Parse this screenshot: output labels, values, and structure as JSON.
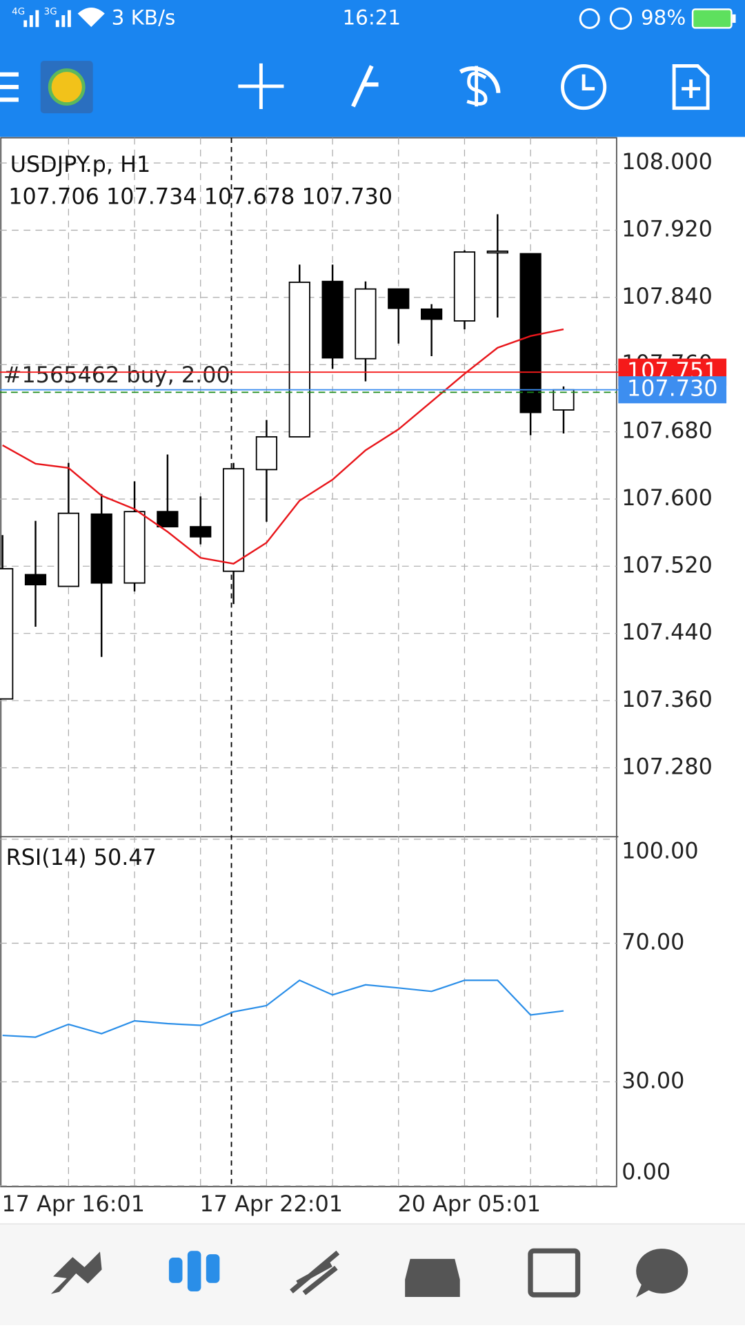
{
  "status_bar": {
    "network1": "4G",
    "network2": "3G",
    "speed": "3 KB/s",
    "time": "16:21",
    "battery": "98%"
  },
  "chart_data": [
    {
      "type": "candlestick",
      "title": "USDJPY.p, H1",
      "subtitle": "107.706 107.734 107.678 107.730",
      "categories": [
        "17 Apr 16:01",
        null,
        null,
        null,
        null,
        null,
        "17 Apr 22:01",
        null,
        null,
        null,
        null,
        null,
        "20 Apr 05:01",
        null,
        null,
        null,
        null,
        null
      ],
      "open": [
        107.362,
        107.51,
        107.496,
        107.582,
        107.5,
        107.585,
        107.567,
        107.514,
        107.635,
        107.674,
        107.859,
        107.767,
        107.85,
        107.826,
        107.812,
        107.894,
        107.892,
        107.706
      ],
      "high": [
        107.557,
        107.574,
        107.643,
        107.606,
        107.621,
        107.653,
        107.603,
        107.643,
        107.694,
        107.879,
        107.879,
        107.859,
        107.85,
        107.832,
        107.896,
        107.939,
        107.892,
        107.734
      ],
      "low": [
        107.362,
        107.448,
        107.496,
        107.412,
        107.49,
        107.567,
        107.546,
        107.475,
        107.573,
        107.674,
        107.755,
        107.74,
        107.785,
        107.77,
        107.802,
        107.816,
        107.676,
        107.678
      ],
      "close": [
        107.517,
        107.498,
        107.583,
        107.5,
        107.585,
        107.567,
        107.555,
        107.636,
        107.674,
        107.858,
        107.768,
        107.85,
        107.827,
        107.814,
        107.894,
        107.895,
        107.703,
        107.73
      ],
      "ma_color": "#e8161b",
      "ma_values": [
        107.664,
        107.642,
        107.637,
        107.604,
        107.588,
        107.561,
        107.53,
        107.523,
        107.548,
        107.598,
        107.623,
        107.658,
        107.683,
        107.716,
        107.749,
        107.78,
        107.794,
        107.802
      ],
      "ylim": [
        107.2,
        108.03
      ],
      "yticks": [
        {
          "value": 108,
          "label": "108.000"
        },
        {
          "value": 107.92,
          "label": "107.920"
        },
        {
          "value": 107.84,
          "label": "107.840"
        },
        {
          "value": 107.76,
          "label": "107.760"
        },
        {
          "value": 107.68,
          "label": "107.680"
        },
        {
          "value": 107.6,
          "label": "107.600"
        },
        {
          "value": 107.52,
          "label": "107.520"
        },
        {
          "value": 107.44,
          "label": "107.440"
        },
        {
          "value": 107.36,
          "label": "107.360"
        },
        {
          "value": 107.28,
          "label": "107.280"
        }
      ],
      "grid": true,
      "price_lines": [
        {
          "value": 107.751,
          "label": "107.751",
          "color": "#f51a1a"
        },
        {
          "value": 107.73,
          "label": "107.730",
          "color": "#3d8ef0"
        }
      ],
      "order_line": {
        "value": 107.727,
        "label": "#1565462 buy, 2.00",
        "color": "#1a8a1a"
      }
    },
    {
      "type": "line",
      "title": "RSI(14) 50.47",
      "color": "#2a8ee8",
      "values": [
        43.4,
        42.9,
        46.6,
        43.9,
        47.6,
        46.8,
        46.3,
        50.2,
        52.0,
        59.3,
        55.1,
        58.0,
        57.1,
        56.1,
        59.3,
        59.3,
        49.3,
        50.47
      ],
      "ylim": [
        0,
        100
      ],
      "yticks": [
        {
          "value": 100,
          "label": "100.00"
        },
        {
          "value": 70,
          "label": "70.00"
        },
        {
          "value": 30,
          "label": "30.00"
        },
        {
          "value": 0,
          "label": "0.00"
        }
      ],
      "grid": true
    }
  ]
}
